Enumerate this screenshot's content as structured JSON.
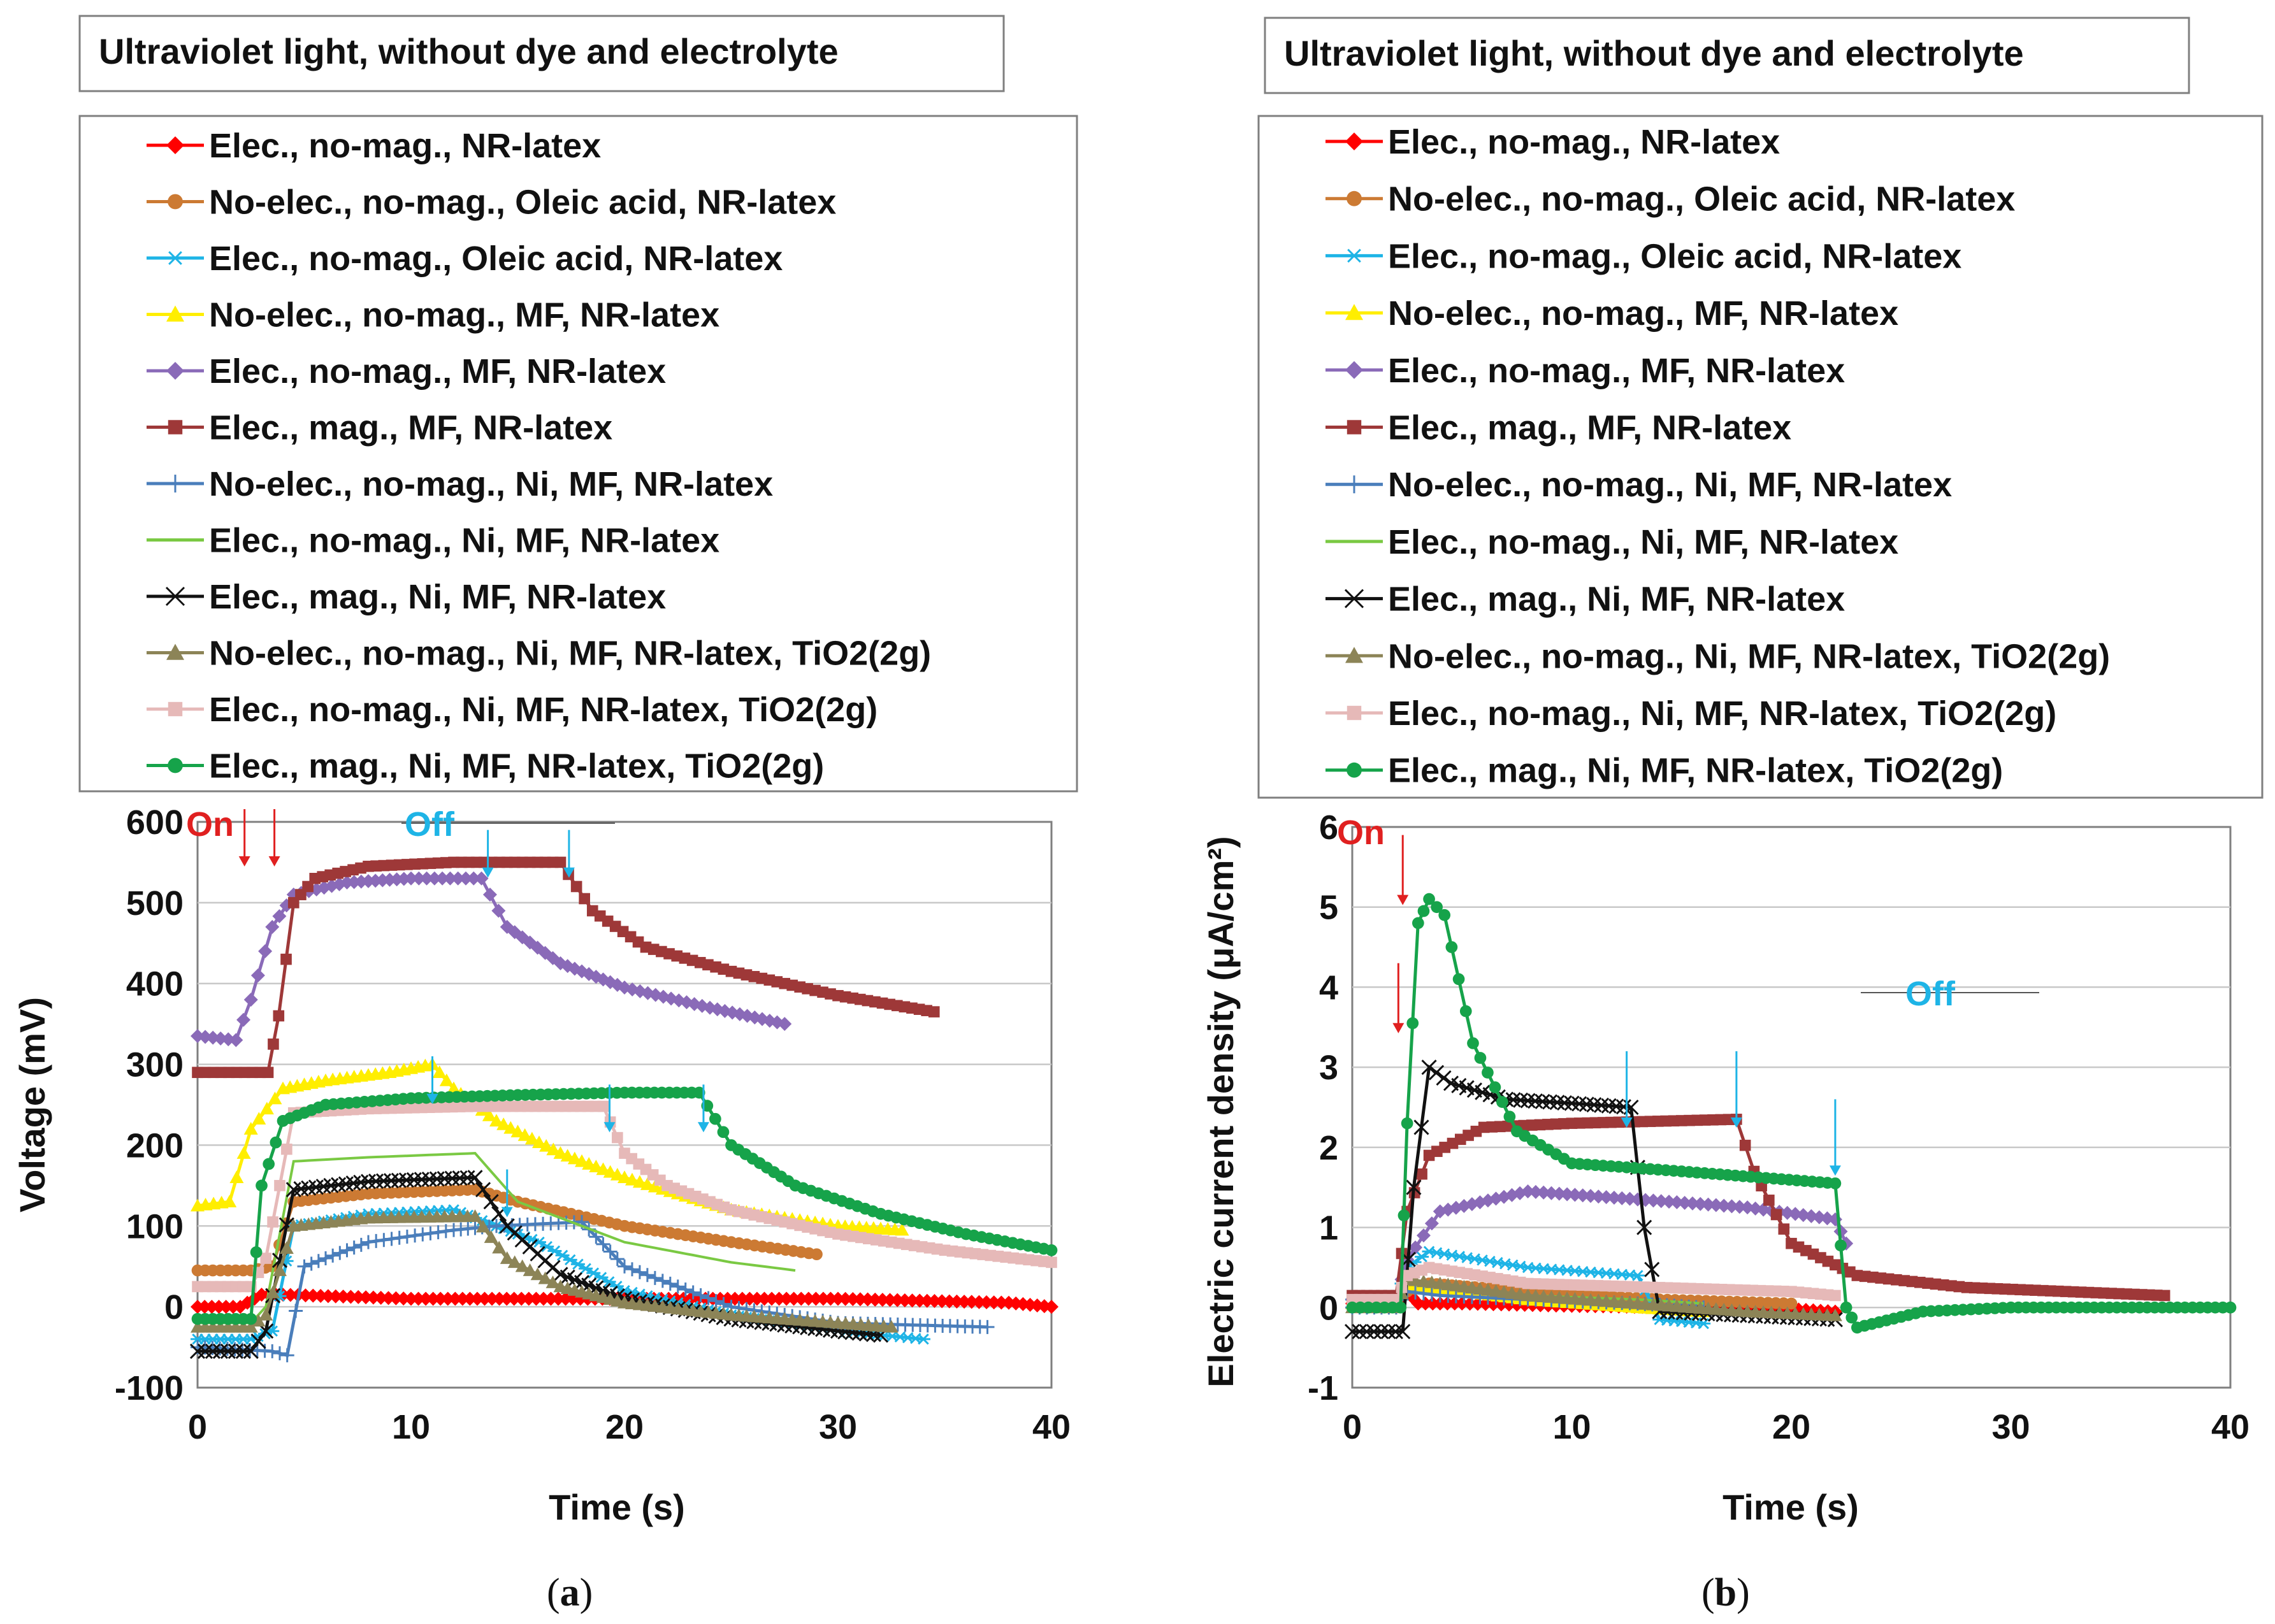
{
  "panels": [
    {
      "title": "Ultraviolet light, without dye and electrolyte",
      "caption_letter": "a",
      "annotation_on": "On",
      "annotation_off": "Off"
    },
    {
      "title": "Ultraviolet light, without dye and electrolyte",
      "caption_letter": "b",
      "annotation_on": "On",
      "annotation_off": "Off"
    }
  ],
  "legend_entries": [
    {
      "label": "Elec., no-mag., NR-latex",
      "color": "#ff0000",
      "marker": "diamond"
    },
    {
      "label": "No-elec., no-mag., Oleic acid, NR-latex",
      "color": "#cc7a33",
      "marker": "circle"
    },
    {
      "label": "Elec., no-mag., Oleic acid, NR-latex",
      "color": "#1eb4e6",
      "marker": "star"
    },
    {
      "label": "No-elec., no-mag., MF, NR-latex",
      "color": "#ffee00",
      "marker": "triangle"
    },
    {
      "label": "Elec., no-mag., MF, NR-latex",
      "color": "#8a6ab8",
      "marker": "diamond"
    },
    {
      "label": "Elec., mag., MF, NR-latex",
      "color": "#9e3838",
      "marker": "square"
    },
    {
      "label": "No-elec., no-mag., Ni, MF, NR-latex",
      "color": "#4a7ebb",
      "marker": "plus"
    },
    {
      "label": "Elec., no-mag., Ni, MF, NR-latex",
      "color": "#7ac943",
      "marker": "none"
    },
    {
      "label": "Elec., mag., Ni, MF, NR-latex",
      "color": "#111111",
      "marker": "x"
    },
    {
      "label": "No-elec., no-mag., Ni, MF, NR-latex, TiO2(2g)",
      "color": "#8c8457",
      "marker": "triangle"
    },
    {
      "label": "Elec., no-mag., Ni, MF, NR-latex, TiO2(2g)",
      "color": "#e6b9b8",
      "marker": "square"
    },
    {
      "label": "Elec., mag., Ni, MF, NR-latex, TiO2(2g)",
      "color": "#16a34a",
      "marker": "circle"
    }
  ],
  "chart_data": [
    {
      "type": "line",
      "xlabel": "Time  (s)",
      "ylabel": "Voltage  (mV)",
      "xlim": [
        0,
        40
      ],
      "ylim": [
        -100,
        600
      ],
      "xticks": [
        0,
        10,
        20,
        30,
        40
      ],
      "yticks": [
        -100,
        0,
        100,
        200,
        300,
        400,
        500,
        600
      ],
      "xtick_labels": [
        "0",
        "10",
        "20",
        "30",
        "40"
      ],
      "ytick_labels": [
        "-100",
        "0",
        "100",
        "200",
        "300",
        "400",
        "500",
        "600"
      ],
      "grid": "horizontal",
      "annotation_arrows_on_x": [
        2.2,
        3.6
      ],
      "annotation_arrows_off": [
        [
          13.6,
          590
        ],
        [
          17.4,
          590
        ],
        [
          11.0,
          310
        ],
        [
          19.3,
          275
        ],
        [
          23.7,
          275
        ],
        [
          14.5,
          170
        ]
      ],
      "series": [
        {
          "name": "Elec., no-mag., NR-latex",
          "x": [
            0,
            2,
            3,
            4,
            10,
            20,
            30,
            38,
            40
          ],
          "y": [
            0,
            0,
            15,
            15,
            10,
            10,
            10,
            5,
            0
          ]
        },
        {
          "name": "No-elec., no-mag., Oleic acid, NR-latex",
          "x": [
            0,
            2.5,
            3.5,
            4.5,
            8,
            13,
            15,
            20,
            25,
            29
          ],
          "y": [
            45,
            45,
            50,
            130,
            140,
            145,
            130,
            100,
            80,
            65
          ]
        },
        {
          "name": "Elec., no-mag., Oleic acid, NR-latex",
          "x": [
            0,
            2.5,
            3.5,
            4.5,
            8,
            12,
            13,
            16,
            20,
            25,
            30,
            34
          ],
          "y": [
            -40,
            -40,
            -30,
            100,
            115,
            120,
            110,
            80,
            20,
            -10,
            -30,
            -40
          ]
        },
        {
          "name": "No-elec., no-mag., MF, NR-latex",
          "x": [
            0,
            1.5,
            2.5,
            4,
            6,
            9,
            11,
            12,
            14,
            17,
            20,
            25,
            30,
            33
          ],
          "y": [
            125,
            130,
            220,
            270,
            280,
            290,
            300,
            270,
            230,
            190,
            160,
            120,
            100,
            95
          ]
        },
        {
          "name": "Elec., no-mag., MF, NR-latex",
          "x": [
            0,
            1.8,
            2.5,
            3.5,
            4.5,
            7,
            10,
            13.3,
            14.5,
            17,
            20,
            24,
            27.5
          ],
          "y": [
            335,
            330,
            380,
            470,
            510,
            525,
            530,
            530,
            470,
            425,
            395,
            370,
            350
          ]
        },
        {
          "name": "Elec., mag., MF, NR-latex",
          "x": [
            0,
            3.3,
            3.8,
            4.5,
            5.5,
            8,
            12,
            17,
            18.5,
            21,
            25,
            30,
            34.5
          ],
          "y": [
            290,
            290,
            360,
            500,
            530,
            545,
            550,
            550,
            490,
            445,
            415,
            385,
            365
          ]
        },
        {
          "name": "No-elec., no-mag., Ni, MF, NR-latex",
          "x": [
            0,
            3.5,
            4.2,
            5,
            8,
            12,
            14,
            18,
            20,
            25,
            30,
            37
          ],
          "y": [
            -50,
            -55,
            -60,
            50,
            80,
            95,
            100,
            105,
            50,
            0,
            -20,
            -25
          ]
        },
        {
          "name": "Elec., no-mag., Ni, MF, NR-latex",
          "x": [
            0,
            2.5,
            3.2,
            4.5,
            8,
            13,
            15,
            20,
            25,
            28
          ],
          "y": [
            -20,
            -20,
            0,
            180,
            185,
            190,
            130,
            80,
            55,
            45
          ]
        },
        {
          "name": "Elec., mag., Ni, MF, NR-latex",
          "x": [
            0,
            2.5,
            3.2,
            4.5,
            8,
            13,
            14.5,
            17,
            20,
            25,
            30,
            32
          ],
          "y": [
            -55,
            -55,
            -30,
            145,
            155,
            160,
            100,
            40,
            10,
            -15,
            -30,
            -35
          ]
        },
        {
          "name": "No-elec., no-mag., Ni, MF, NR-latex, TiO2(2g)",
          "x": [
            0,
            2.5,
            3.2,
            4.5,
            8,
            13,
            14.5,
            17,
            20,
            25,
            30,
            32.5
          ],
          "y": [
            -25,
            -25,
            -10,
            100,
            110,
            112,
            60,
            25,
            5,
            -10,
            -20,
            -25
          ]
        },
        {
          "name": "Elec., no-mag., Ni, MF, NR-latex, TiO2(2g)",
          "x": [
            0,
            2.5,
            3.2,
            4.5,
            8,
            13,
            19,
            20,
            22,
            25,
            30,
            35,
            40
          ],
          "y": [
            25,
            25,
            60,
            240,
            245,
            248,
            248,
            190,
            150,
            120,
            90,
            70,
            55
          ]
        },
        {
          "name": "Elec., mag., Ni, MF, NR-latex, TiO2(2g)",
          "x": [
            0,
            2.5,
            3,
            4,
            6,
            10,
            15,
            20,
            23.5,
            25,
            28,
            32,
            36,
            40
          ],
          "y": [
            -15,
            -15,
            150,
            230,
            250,
            258,
            262,
            265,
            265,
            200,
            150,
            115,
            90,
            70
          ]
        }
      ]
    },
    {
      "type": "line",
      "xlabel": "Time  (s)",
      "ylabel": "Electric current density  (μA/cm²)",
      "xlim": [
        0,
        40
      ],
      "ylim": [
        -1,
        6
      ],
      "xticks": [
        0,
        10,
        20,
        30,
        40
      ],
      "yticks": [
        -1,
        0,
        1,
        2,
        3,
        4,
        5,
        6
      ],
      "xtick_labels": [
        "0",
        "10",
        "20",
        "30",
        "40"
      ],
      "ytick_labels": [
        "-1",
        "0",
        "1",
        "2",
        "3",
        "4",
        "5",
        "6"
      ],
      "grid": "horizontal",
      "annotation_arrows_on": [
        [
          2.3,
          5.9
        ],
        [
          2.1,
          4.3
        ]
      ],
      "annotation_arrows_off": [
        [
          12.5,
          3.2
        ],
        [
          17.5,
          3.2
        ],
        [
          22.0,
          2.6
        ]
      ],
      "series": [
        {
          "name": "Elec., no-mag., NR-latex",
          "x": [
            0,
            2,
            2.5,
            3,
            5,
            10,
            15,
            20,
            22
          ],
          "y": [
            0.05,
            0.05,
            0.2,
            0.05,
            0.05,
            0.02,
            0.0,
            -0.02,
            -0.05
          ]
        },
        {
          "name": "No-elec., no-mag., Oleic acid, NR-latex",
          "x": [
            0,
            2,
            2.5,
            3.5,
            8,
            14,
            20
          ],
          "y": [
            0.1,
            0.1,
            0.2,
            0.3,
            0.2,
            0.1,
            0.05
          ]
        },
        {
          "name": "Elec., no-mag., Oleic acid, NR-latex",
          "x": [
            0,
            2,
            2.5,
            3.5,
            8,
            13,
            14,
            16
          ],
          "y": [
            0.1,
            0.1,
            0.5,
            0.7,
            0.5,
            0.4,
            -0.15,
            -0.2
          ]
        },
        {
          "name": "No-elec., no-mag., MF, NR-latex",
          "x": [
            0,
            2,
            2.5,
            3.5,
            8,
            13,
            16
          ],
          "y": [
            0.05,
            0.05,
            0.3,
            0.25,
            0.1,
            0.0,
            -0.05
          ]
        },
        {
          "name": "Elec., no-mag., MF, NR-latex",
          "x": [
            0,
            2,
            2.5,
            4,
            8,
            13,
            18,
            22,
            22.5
          ],
          "y": [
            0.1,
            0.1,
            0.6,
            1.2,
            1.45,
            1.35,
            1.25,
            1.1,
            0.8
          ]
        },
        {
          "name": "Elec., mag., MF, NR-latex",
          "x": [
            0,
            2,
            2.5,
            3.5,
            6,
            10,
            17.5,
            18.3,
            20,
            23,
            28,
            37
          ],
          "y": [
            0.15,
            0.15,
            1.2,
            1.9,
            2.25,
            2.3,
            2.35,
            1.7,
            0.8,
            0.4,
            0.25,
            0.15
          ]
        },
        {
          "name": "No-elec., no-mag., Ni, MF, NR-latex",
          "x": [
            0,
            2,
            2.5,
            4,
            8,
            13,
            16
          ],
          "y": [
            0.0,
            0.0,
            0.2,
            0.15,
            0.1,
            0.05,
            0.0
          ]
        },
        {
          "name": "Elec., no-mag., Ni, MF, NR-latex",
          "x": [
            0,
            2,
            2.5,
            4,
            8,
            13,
            16
          ],
          "y": [
            0.05,
            0.05,
            0.3,
            0.25,
            0.15,
            0.1,
            0.05
          ]
        },
        {
          "name": "Elec., mag., Ni, MF, NR-latex",
          "x": [
            0,
            2.3,
            2.8,
            3.5,
            4.5,
            7,
            10,
            12.7,
            13.3,
            14,
            18,
            22
          ],
          "y": [
            -0.3,
            -0.3,
            1.5,
            3.0,
            2.8,
            2.6,
            2.55,
            2.5,
            1.0,
            -0.05,
            -0.1,
            -0.15
          ]
        },
        {
          "name": "No-elec., no-mag., Ni, MF, NR-latex, TiO2(2g)",
          "x": [
            0,
            2,
            2.5,
            4,
            8,
            13,
            18,
            22
          ],
          "y": [
            0.0,
            0.0,
            0.35,
            0.3,
            0.15,
            0.05,
            -0.05,
            -0.1
          ]
        },
        {
          "name": "Elec., no-mag., Ni, MF, NR-latex, TiO2(2g)",
          "x": [
            0,
            2,
            2.5,
            3.5,
            8,
            14,
            20,
            22
          ],
          "y": [
            0.1,
            0.1,
            0.4,
            0.5,
            0.3,
            0.25,
            0.2,
            0.15
          ]
        },
        {
          "name": "Elec., mag., Ni, MF, NR-latex, TiO2(2g)",
          "x": [
            0,
            2.2,
            2.5,
            3.0,
            3.5,
            4.2,
            5.5,
            7.5,
            10,
            15,
            22,
            22.5,
            23,
            26,
            30,
            40
          ],
          "y": [
            0.0,
            0.0,
            2.3,
            4.8,
            5.1,
            4.9,
            3.3,
            2.2,
            1.8,
            1.7,
            1.55,
            0.0,
            -0.25,
            -0.05,
            0.0,
            0.0
          ]
        }
      ]
    }
  ]
}
